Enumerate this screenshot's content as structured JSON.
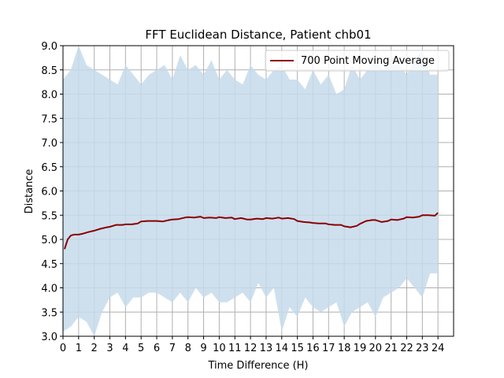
{
  "chart_data": {
    "type": "line",
    "title": "FFT Euclidean Distance, Patient chb01",
    "xlabel": "Time Difference (H)",
    "ylabel": "Distance",
    "xlim": [
      0,
      25
    ],
    "ylim": [
      3.0,
      9.0
    ],
    "x_ticks": [
      0,
      1,
      2,
      3,
      4,
      5,
      6,
      7,
      8,
      9,
      10,
      11,
      12,
      13,
      14,
      15,
      16,
      17,
      18,
      19,
      20,
      21,
      22,
      23,
      24
    ],
    "x_tick_labels": [
      "0",
      "1",
      "2",
      "3",
      "4",
      "5",
      "6",
      "7",
      "8",
      "9",
      "10",
      "11",
      "12",
      "13",
      "14",
      "15",
      "16",
      "17",
      "18",
      "19",
      "20",
      "21",
      "22",
      "23",
      "24"
    ],
    "y_ticks": [
      3.0,
      3.5,
      4.0,
      4.5,
      5.0,
      5.5,
      6.0,
      6.5,
      7.0,
      7.5,
      8.0,
      8.5,
      9.0
    ],
    "y_tick_labels": [
      "3.0",
      "3.5",
      "4.0",
      "4.5",
      "5.0",
      "5.5",
      "6.0",
      "6.5",
      "7.0",
      "7.5",
      "8.0",
      "8.5",
      "9.0"
    ],
    "grid": true,
    "legend_position": "top-right",
    "series": [
      {
        "kind": "range-band",
        "color": "#c6dbeb",
        "x": [
          0,
          0.5,
          1,
          1.5,
          2,
          2.5,
          3,
          3.5,
          4,
          4.5,
          5,
          5.5,
          6,
          6.5,
          7,
          7.5,
          8,
          8.5,
          9,
          9.5,
          10,
          10.5,
          11,
          11.5,
          12,
          12.5,
          13,
          13.5,
          14,
          14.5,
          15,
          15.5,
          16,
          16.5,
          17,
          17.5,
          18,
          18.5,
          19,
          19.5,
          20,
          20.5,
          21,
          21.5,
          22,
          22.5,
          23,
          23.5,
          24
        ],
        "upper": [
          8.3,
          8.5,
          9.0,
          8.6,
          8.5,
          8.4,
          8.3,
          8.2,
          8.6,
          8.4,
          8.2,
          8.4,
          8.5,
          8.6,
          8.3,
          8.8,
          8.5,
          8.6,
          8.4,
          8.7,
          8.3,
          8.5,
          8.3,
          8.2,
          8.6,
          8.4,
          8.3,
          8.5,
          8.6,
          8.3,
          8.3,
          8.1,
          8.5,
          8.2,
          8.4,
          8.0,
          8.1,
          8.6,
          8.3,
          8.5,
          8.7,
          8.5,
          8.6,
          8.6,
          8.4,
          8.7,
          8.9,
          8.4,
          8.4
        ],
        "lower": [
          3.1,
          3.2,
          3.4,
          3.3,
          3.0,
          3.5,
          3.8,
          3.9,
          3.6,
          3.8,
          3.8,
          3.9,
          3.9,
          3.8,
          3.7,
          3.9,
          3.7,
          4.0,
          3.8,
          3.9,
          3.7,
          3.7,
          3.8,
          3.9,
          3.7,
          4.1,
          3.8,
          4.0,
          3.1,
          3.6,
          3.4,
          3.8,
          3.6,
          3.5,
          3.6,
          3.7,
          3.2,
          3.5,
          3.6,
          3.7,
          3.4,
          3.8,
          3.9,
          4.0,
          4.2,
          4.0,
          3.8,
          4.3,
          4.3
        ]
      },
      {
        "name": "700 Point Moving Average",
        "color": "#8b0000",
        "x": [
          0.1,
          0.2,
          0.3,
          0.5,
          0.7,
          1.0,
          1.3,
          1.6,
          2.0,
          2.4,
          2.8,
          3.0,
          3.4,
          3.8,
          4.0,
          4.4,
          4.8,
          5.0,
          5.4,
          5.8,
          6.0,
          6.4,
          6.8,
          7.0,
          7.4,
          7.8,
          8.0,
          8.4,
          8.8,
          9.0,
          9.4,
          9.8,
          10.0,
          10.4,
          10.8,
          11.0,
          11.4,
          11.8,
          12.0,
          12.4,
          12.8,
          13.0,
          13.4,
          13.8,
          14.0,
          14.4,
          14.8,
          15.0,
          15.4,
          15.8,
          16.0,
          16.4,
          16.8,
          17.0,
          17.4,
          17.8,
          18.0,
          18.4,
          18.8,
          19.0,
          19.4,
          19.8,
          20.0,
          20.4,
          20.8,
          21.0,
          21.4,
          21.8,
          22.0,
          22.4,
          22.8,
          23.0,
          23.4,
          23.8,
          24.0
        ],
        "y": [
          4.8,
          4.9,
          5.0,
          5.08,
          5.1,
          5.1,
          5.12,
          5.15,
          5.18,
          5.22,
          5.25,
          5.26,
          5.3,
          5.3,
          5.31,
          5.31,
          5.33,
          5.37,
          5.38,
          5.38,
          5.38,
          5.37,
          5.4,
          5.41,
          5.42,
          5.45,
          5.46,
          5.45,
          5.47,
          5.44,
          5.45,
          5.44,
          5.46,
          5.44,
          5.45,
          5.42,
          5.44,
          5.41,
          5.41,
          5.43,
          5.42,
          5.44,
          5.43,
          5.45,
          5.43,
          5.44,
          5.42,
          5.38,
          5.36,
          5.35,
          5.34,
          5.33,
          5.33,
          5.31,
          5.3,
          5.3,
          5.27,
          5.25,
          5.28,
          5.32,
          5.38,
          5.4,
          5.4,
          5.36,
          5.38,
          5.41,
          5.4,
          5.43,
          5.46,
          5.45,
          5.47,
          5.5,
          5.5,
          5.49,
          5.55
        ]
      }
    ]
  }
}
